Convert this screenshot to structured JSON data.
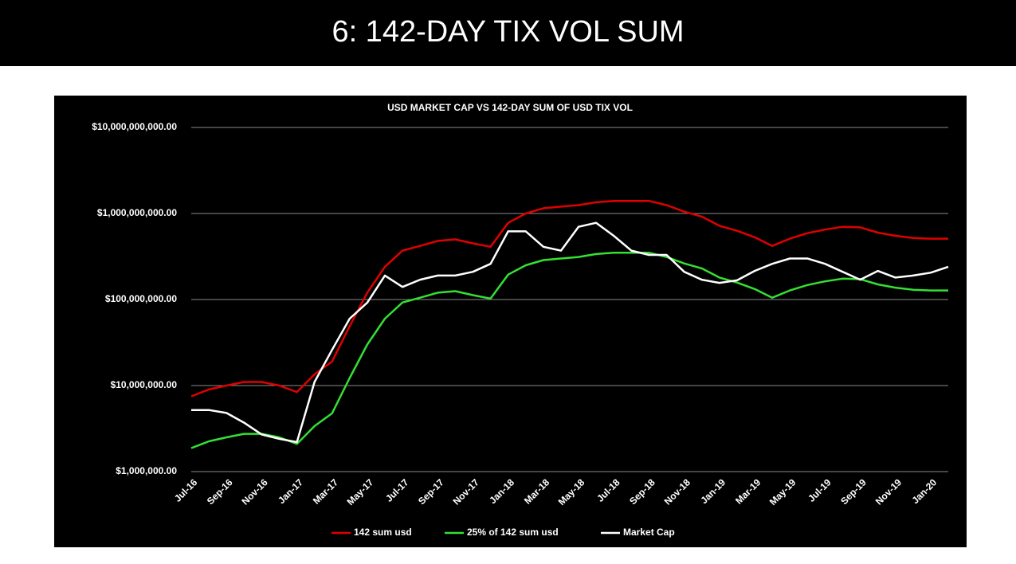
{
  "slide_title": "6: 142-DAY TIX VOL SUM",
  "chart_data": {
    "type": "line",
    "title": "USD MARKET CAP VS 142-DAY SUM OF USD TIX VOL",
    "categories": [
      "Jul-16",
      null,
      "Sep-16",
      null,
      "Nov-16",
      null,
      "Jan-17",
      null,
      "Mar-17",
      null,
      "May-17",
      null,
      "Jul-17",
      null,
      "Sep-17",
      null,
      "Nov-17",
      null,
      "Jan-18",
      null,
      "Mar-18",
      null,
      "May-18",
      null,
      "Jul-18",
      null,
      "Sep-18",
      null,
      "Nov-18",
      null,
      "Jan-19",
      null,
      "Mar-19",
      null,
      "May-19",
      null,
      "Jul-19",
      null,
      "Sep-19",
      null,
      "Nov-19",
      null,
      "Jan-20",
      null
    ],
    "log_scale": true,
    "grid": true,
    "legend": "bottom",
    "ylim": [
      1000000,
      10000000000
    ],
    "yticks": [
      {
        "value": 1000000,
        "label": "$1,000,000.00"
      },
      {
        "value": 10000000,
        "label": "$10,000,000.00"
      },
      {
        "value": 100000000,
        "label": "$100,000,000.00"
      },
      {
        "value": 1000000000,
        "label": "$1,000,000,000.00"
      },
      {
        "value": 10000000000,
        "label": "$10,000,000,000.00"
      }
    ],
    "series": [
      {
        "name": "142 sum usd",
        "color": "#e00000",
        "values": [
          7500000,
          9000000,
          10000000,
          11000000,
          11000000,
          10000000,
          8400000,
          13500000,
          19000000,
          49000000,
          120000000,
          240000000,
          370000000,
          420000000,
          480000000,
          500000000,
          450000000,
          410000000,
          780000000,
          1000000000,
          1150000000,
          1200000000,
          1250000000,
          1350000000,
          1400000000,
          1400000000,
          1400000000,
          1250000000,
          1050000000,
          920000000,
          720000000,
          630000000,
          530000000,
          420000000,
          510000000,
          590000000,
          650000000,
          700000000,
          690000000,
          600000000,
          550000000,
          520000000,
          510000000,
          510000000
        ]
      },
      {
        "name": "25% of 142 sum usd",
        "color": "#33e033",
        "values": [
          1875000,
          2250000,
          2500000,
          2750000,
          2750000,
          2500000,
          2100000,
          3375000,
          4750000,
          12250000,
          30000000,
          60000000,
          92500000,
          105000000,
          120000000,
          125000000,
          112500000,
          102500000,
          195000000,
          250000000,
          287500000,
          300000000,
          312500000,
          337500000,
          350000000,
          350000000,
          350000000,
          312500000,
          262500000,
          230000000,
          180000000,
          157500000,
          132500000,
          105000000,
          127500000,
          147500000,
          162500000,
          175000000,
          172500000,
          150000000,
          137500000,
          130000000,
          127500000,
          127500000
        ]
      },
      {
        "name": "Market Cap",
        "color": "#ffffff",
        "values": [
          5200000,
          5200000,
          4800000,
          3700000,
          2700000,
          2400000,
          2200000,
          11000000,
          26000000,
          60000000,
          92000000,
          190000000,
          140000000,
          170000000,
          190000000,
          190000000,
          210000000,
          260000000,
          620000000,
          620000000,
          410000000,
          370000000,
          700000000,
          780000000,
          550000000,
          370000000,
          330000000,
          330000000,
          210000000,
          170000000,
          156000000,
          167000000,
          215000000,
          260000000,
          300000000,
          300000000,
          260000000,
          210000000,
          170000000,
          215000000,
          180000000,
          190000000,
          205000000,
          240000000
        ]
      }
    ]
  }
}
